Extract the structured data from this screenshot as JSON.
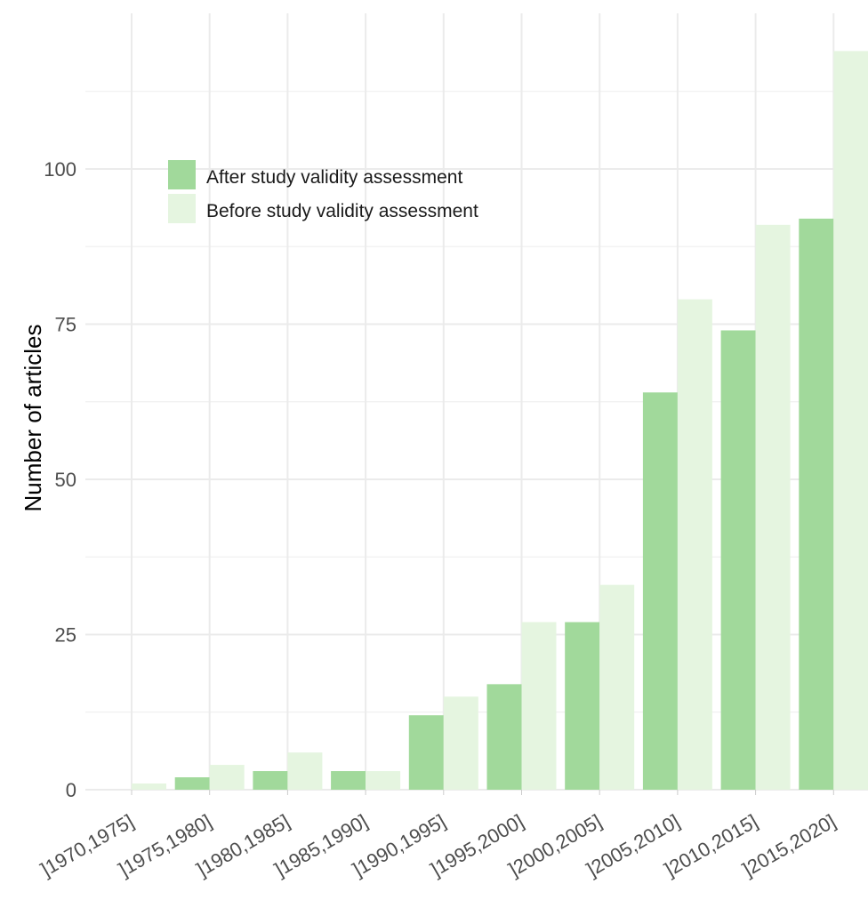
{
  "chart_data": {
    "type": "bar",
    "title": "",
    "xlabel": "",
    "ylabel": "Number of articles",
    "categories": [
      "]1970,1975]",
      "]1975,1980]",
      "]1980,1985]",
      "]1985,1990]",
      "]1990,1995]",
      "]1995,2000]",
      "]2000,2005]",
      "]2005,2010]",
      "]2010,2015]",
      "]2015,2020]"
    ],
    "series": [
      {
        "name": "After study validity assessment",
        "color": "#a1d99b",
        "values": [
          0,
          2,
          3,
          3,
          12,
          17,
          27,
          64,
          74,
          92
        ]
      },
      {
        "name": "Before study validity assessment",
        "color": "#e5f5e0",
        "values": [
          1,
          4,
          6,
          3,
          15,
          27,
          33,
          79,
          91,
          119
        ]
      }
    ],
    "ylim": [
      0,
      125
    ],
    "yticks": [
      0,
      25,
      50,
      75,
      100
    ],
    "grid": true,
    "legend_position": "top-left"
  }
}
